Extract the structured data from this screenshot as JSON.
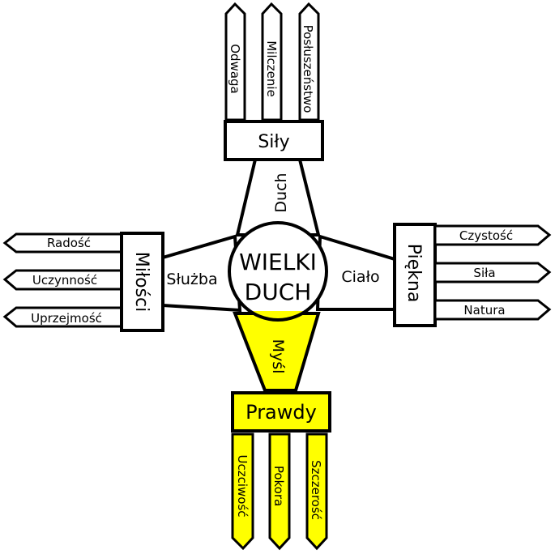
{
  "colors": {
    "line": "#000000",
    "fill": "#ffffff",
    "highlight": "#ffff00"
  },
  "center": {
    "line1": "WIELKI",
    "line2": "DUCH"
  },
  "connectors": {
    "top": "Duch",
    "left": "Służba",
    "right": "Ciało",
    "bottom": "Myśl"
  },
  "boxes": {
    "top": "Siły",
    "left": "Miłości",
    "right": "Piękna",
    "bottom": "Prawdy"
  },
  "pillars": {
    "top": [
      "Odwaga",
      "Milczenie",
      "Posłuszeństwo"
    ],
    "left": [
      "Radość",
      "Uczynność",
      "Uprzejmość"
    ],
    "right": [
      "Czystość",
      "Siła",
      "Natura"
    ],
    "bottom": [
      "Uczciwość",
      "Pokora",
      "Szczerość"
    ]
  }
}
